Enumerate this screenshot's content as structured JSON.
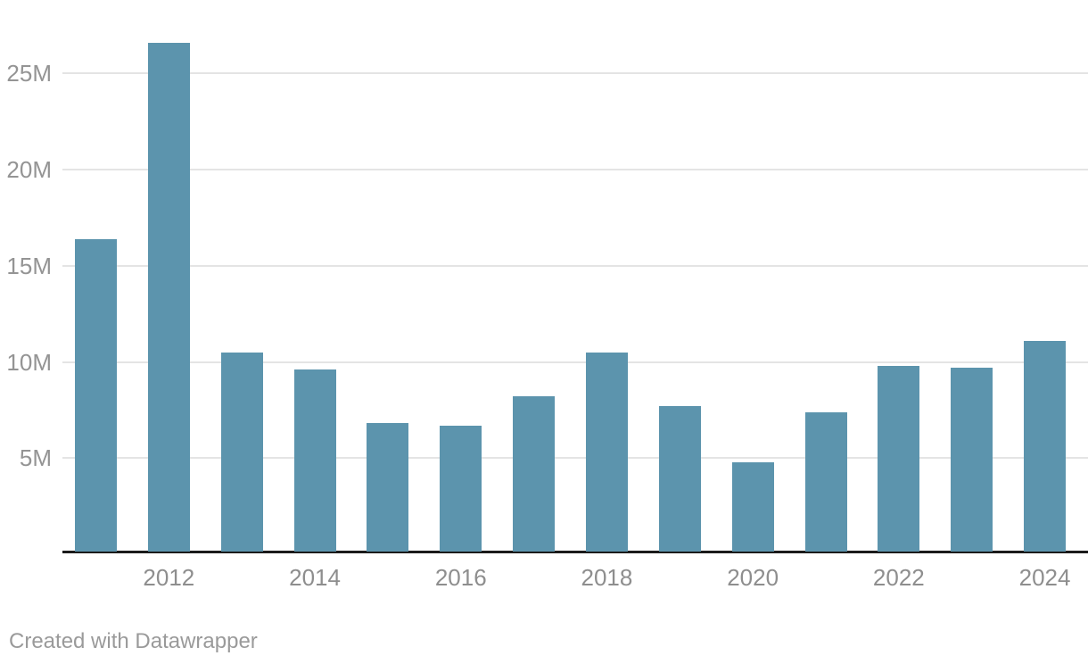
{
  "chart_data": {
    "type": "bar",
    "title": "",
    "xlabel": "",
    "ylabel": "",
    "categories": [
      "2011",
      "2012",
      "2013",
      "2014",
      "2015",
      "2016",
      "2017",
      "2018",
      "2019",
      "2020",
      "2021",
      "2022",
      "2023",
      "2024"
    ],
    "values": [
      16.4,
      26.6,
      10.5,
      9.6,
      6.8,
      6.7,
      8.2,
      10.5,
      7.7,
      4.8,
      7.4,
      9.8,
      9.7,
      11.1
    ],
    "unit": "M",
    "ylim": [
      0,
      28.8
    ],
    "y_tick_values": [
      5,
      10,
      15,
      20,
      25
    ],
    "y_tick_labels": [
      "5M",
      "10M",
      "15M",
      "20M",
      "25M"
    ],
    "x_tick_labels": [
      "2012",
      "2014",
      "2016",
      "2018",
      "2020",
      "2022",
      "2024"
    ],
    "grid": true,
    "legend_position": "none",
    "bar_color": "#5c94ad",
    "gridline_color": "#e4e4e4",
    "axis_line_color": "#1b1b1b",
    "tick_label_color": "#8e8e8e"
  },
  "footer": {
    "attribution": "Created with Datawrapper"
  }
}
